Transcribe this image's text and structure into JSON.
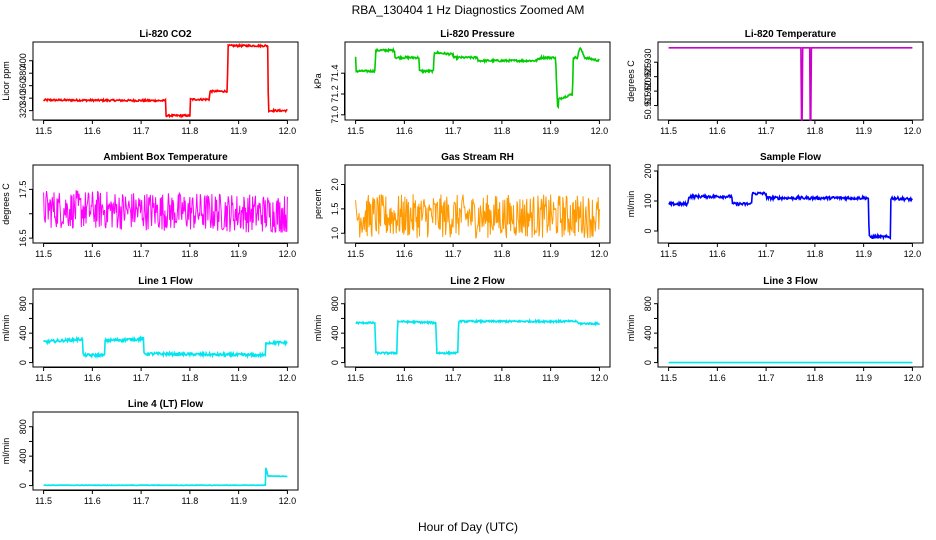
{
  "figure": {
    "title": "RBA_130404  1 Hz Diagnostics Zoomed AM",
    "xlabel": "Hour of Day (UTC)"
  },
  "chart_data": [
    {
      "type": "line",
      "title": "Li-820 CO2",
      "ylabel": "Licor ppm",
      "color": "#ff0000",
      "xlim": [
        11.5,
        12.0
      ],
      "ylim": [
        305,
        430
      ],
      "xticks": [
        "11.5",
        "11.6",
        "11.7",
        "11.8",
        "11.9",
        "12.0"
      ],
      "yticks": [
        320,
        340,
        360,
        380,
        400
      ],
      "series": [
        {
          "name": "CO2",
          "x": [
            11.5,
            11.75,
            11.751,
            11.8,
            11.801,
            11.84,
            11.841,
            11.877,
            11.878,
            11.96,
            11.961,
            12.0
          ],
          "values": [
            337,
            336,
            312,
            312,
            338,
            338,
            351,
            351,
            424,
            424,
            320,
            320
          ],
          "noise": 1.5
        }
      ]
    },
    {
      "type": "line",
      "title": "Li-820 Pressure",
      "ylabel": "kPa",
      "color": "#00cc00",
      "xlim": [
        11.5,
        12.0
      ],
      "ylim": [
        70.95,
        71.7
      ],
      "xticks": [
        "11.5",
        "11.6",
        "11.7",
        "11.8",
        "11.9",
        "12.0"
      ],
      "yticks": [
        71.0,
        71.2,
        71.4
      ],
      "ytick_labels": [
        "71.0",
        "71.2",
        "71.4"
      ],
      "series": [
        {
          "name": "Pressure",
          "x": [
            11.5,
            11.5,
            11.54,
            11.541,
            11.58,
            11.581,
            11.63,
            11.631,
            11.66,
            11.661,
            11.7,
            11.701,
            11.75,
            11.751,
            11.87,
            11.88,
            11.91,
            11.915,
            11.916,
            11.945,
            11.946,
            11.955,
            11.96,
            11.97,
            12.0
          ],
          "values": [
            71.55,
            71.42,
            71.42,
            71.62,
            71.62,
            71.55,
            71.55,
            71.42,
            71.42,
            71.6,
            71.58,
            71.55,
            71.55,
            71.52,
            71.52,
            71.55,
            71.55,
            71.0,
            71.15,
            71.2,
            71.55,
            71.55,
            71.65,
            71.55,
            71.52
          ],
          "noise": 0.01
        }
      ]
    },
    {
      "type": "line",
      "title": "Li-820 Temperature",
      "ylabel": "degrees C",
      "color": "#cc00cc",
      "xlim": [
        11.5,
        12.0
      ],
      "ylim": [
        50.91,
        50.937
      ],
      "xticks": [
        "11.5",
        "11.6",
        "11.7",
        "11.8",
        "11.9",
        "12.0"
      ],
      "yticks": [
        50.915,
        50.92,
        50.925,
        50.93
      ],
      "ytick_labels": [
        "50.915",
        "50.920",
        "50.925",
        "50.930"
      ],
      "series": [
        {
          "name": "Temperature",
          "x": [
            11.5,
            11.772,
            11.772,
            11.774,
            11.774,
            11.79,
            11.79,
            11.792,
            11.792,
            12.0
          ],
          "values": [
            50.935,
            50.935,
            50.91,
            50.91,
            50.935,
            50.935,
            50.91,
            50.91,
            50.935,
            50.935
          ],
          "noise": 0
        }
      ]
    },
    {
      "type": "line",
      "title": "Ambient Box Temperature",
      "ylabel": "degrees C",
      "color": "#ff00ff",
      "xlim": [
        11.5,
        12.0
      ],
      "ylim": [
        16.4,
        18.0
      ],
      "xticks": [
        "11.5",
        "11.6",
        "11.7",
        "11.8",
        "11.9",
        "12.0"
      ],
      "yticks": [
        16.5,
        17.0,
        17.5
      ],
      "ytick_labels": [
        "16.5",
        "",
        "17.5"
      ],
      "series": [
        {
          "name": "Box temp",
          "x": [
            11.5,
            12.0
          ],
          "values": [
            17.1,
            17.0
          ],
          "noise": 0.4
        }
      ]
    },
    {
      "type": "line",
      "title": "Gas Stream RH",
      "ylabel": "percent",
      "color": "#ff9900",
      "xlim": [
        11.5,
        12.0
      ],
      "ylim": [
        0.8,
        2.4
      ],
      "xticks": [
        "11.5",
        "11.6",
        "11.7",
        "11.8",
        "11.9",
        "12.0"
      ],
      "yticks": [
        1.0,
        1.5,
        2.0
      ],
      "ytick_labels": [
        "1.0",
        "1.5",
        "2.0"
      ],
      "series": [
        {
          "name": "RH",
          "x": [
            11.5,
            12.0
          ],
          "values": [
            1.35,
            1.35
          ],
          "noise": 0.45
        }
      ]
    },
    {
      "type": "line",
      "title": "Sample Flow",
      "ylabel": "ml/min",
      "color": "#0000ff",
      "xlim": [
        11.5,
        12.0
      ],
      "ylim": [
        -40,
        220
      ],
      "xticks": [
        "11.5",
        "11.6",
        "11.7",
        "11.8",
        "11.9",
        "12.0"
      ],
      "yticks": [
        0,
        100,
        200
      ],
      "series": [
        {
          "name": "Sample flow",
          "x": [
            11.5,
            11.54,
            11.541,
            11.63,
            11.631,
            11.67,
            11.671,
            11.7,
            11.701,
            11.91,
            11.911,
            11.955,
            11.956,
            12.0
          ],
          "values": [
            90,
            90,
            115,
            115,
            90,
            90,
            125,
            125,
            110,
            110,
            -20,
            -20,
            110,
            105
          ],
          "noise": 5
        }
      ]
    },
    {
      "type": "line",
      "title": "Line 1 Flow",
      "ylabel": "ml/min",
      "color": "#00e5ee",
      "xlim": [
        11.5,
        12.0
      ],
      "ylim": [
        -60,
        1000
      ],
      "xticks": [
        "11.5",
        "11.6",
        "11.7",
        "11.8",
        "11.9",
        "12.0"
      ],
      "yticks": [
        0,
        200,
        400,
        600,
        800
      ],
      "ytick_labels": [
        "0",
        "",
        "400",
        "",
        "800"
      ],
      "series": [
        {
          "name": "Line 1",
          "x": [
            11.5,
            11.58,
            11.581,
            11.625,
            11.626,
            11.705,
            11.706,
            11.955,
            11.956,
            12.0
          ],
          "values": [
            280,
            320,
            100,
            100,
            300,
            320,
            120,
            100,
            270,
            270
          ],
          "noise": 20
        }
      ]
    },
    {
      "type": "line",
      "title": "Line 2 Flow",
      "ylabel": "ml/min",
      "color": "#00e5ee",
      "xlim": [
        11.5,
        12.0
      ],
      "ylim": [
        -60,
        1000
      ],
      "xticks": [
        "11.5",
        "11.6",
        "11.7",
        "11.8",
        "11.9",
        "12.0"
      ],
      "yticks": [
        0,
        200,
        400,
        600,
        800
      ],
      "ytick_labels": [
        "0",
        "",
        "400",
        "",
        "800"
      ],
      "series": [
        {
          "name": "Line 2",
          "x": [
            11.5,
            11.54,
            11.541,
            11.585,
            11.586,
            11.665,
            11.666,
            11.71,
            11.711,
            11.955,
            11.956,
            12.0
          ],
          "values": [
            540,
            540,
            130,
            130,
            560,
            540,
            130,
            130,
            560,
            560,
            530,
            530
          ],
          "noise": 12
        }
      ]
    },
    {
      "type": "line",
      "title": "Line 3 Flow",
      "ylabel": "ml/min",
      "color": "#00e5ee",
      "xlim": [
        11.5,
        12.0
      ],
      "ylim": [
        -60,
        1000
      ],
      "xticks": [
        "11.5",
        "11.6",
        "11.7",
        "11.8",
        "11.9",
        "12.0"
      ],
      "yticks": [
        0,
        200,
        400,
        600,
        800
      ],
      "ytick_labels": [
        "0",
        "",
        "400",
        "",
        "800"
      ],
      "series": [
        {
          "name": "Line 3",
          "x": [
            11.5,
            12.0
          ],
          "values": [
            0,
            0
          ],
          "noise": 0
        }
      ]
    },
    {
      "type": "line",
      "title": "Line 4 (LT) Flow",
      "ylabel": "ml/min",
      "color": "#00e5ee",
      "xlim": [
        11.5,
        12.0
      ],
      "ylim": [
        -60,
        1000
      ],
      "xticks": [
        "11.5",
        "11.6",
        "11.7",
        "11.8",
        "11.9",
        "12.0"
      ],
      "yticks": [
        0,
        200,
        400,
        600,
        800
      ],
      "ytick_labels": [
        "0",
        "",
        "400",
        "",
        "800"
      ],
      "series": [
        {
          "name": "Line 4",
          "x": [
            11.5,
            11.955,
            11.956,
            11.96,
            11.965,
            12.0
          ],
          "values": [
            5,
            5,
            250,
            130,
            130,
            125
          ],
          "noise": 3
        }
      ]
    }
  ]
}
